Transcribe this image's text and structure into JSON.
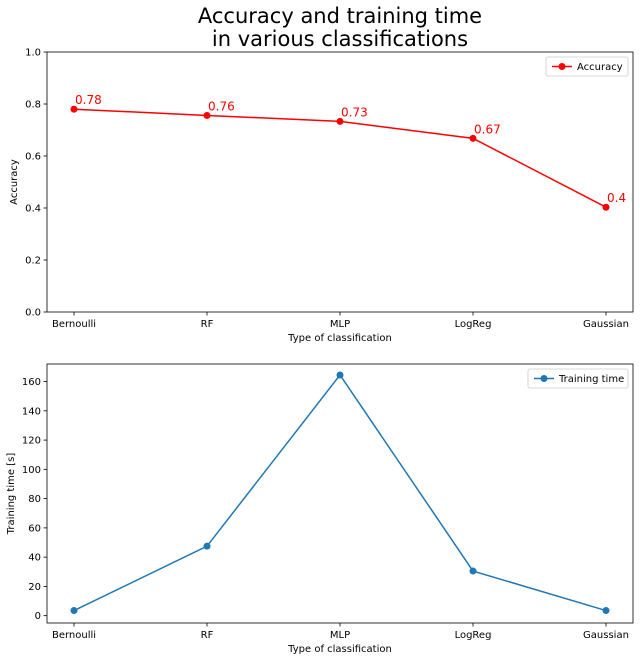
{
  "chart_data": [
    {
      "type": "line",
      "title": "Accuracy and training time\nin various classifications",
      "xlabel": "Type of classification",
      "ylabel": "Accuracy",
      "categories": [
        "Bernoulli",
        "RF",
        "MLP",
        "LogReg",
        "Gaussian"
      ],
      "series": [
        {
          "name": "Accuracy",
          "values": [
            0.78,
            0.756,
            0.733,
            0.668,
            0.403
          ],
          "color": "#ff0000"
        }
      ],
      "data_labels": [
        "0.78",
        "0.76",
        "0.73",
        "0.67",
        "0.4"
      ],
      "ylim": [
        0,
        1.0
      ],
      "yticks": [
        0.0,
        0.2,
        0.4,
        0.6,
        0.8,
        1.0
      ],
      "ytick_labels": [
        "0.0",
        "0.2",
        "0.4",
        "0.6",
        "0.8",
        "1.0"
      ],
      "grid": false,
      "legend": "top-right"
    },
    {
      "type": "line",
      "title": "",
      "xlabel": "Type of classification",
      "ylabel": "Training time [s]",
      "categories": [
        "Bernoulli",
        "RF",
        "MLP",
        "LogReg",
        "Gaussian"
      ],
      "series": [
        {
          "name": "Training time",
          "values": [
            3.5,
            47.5,
            164.5,
            30.5,
            3.5
          ],
          "color": "#1f77b4"
        }
      ],
      "ylim": [
        -5,
        172
      ],
      "yticks": [
        0,
        20,
        40,
        60,
        80,
        100,
        120,
        140,
        160
      ],
      "ytick_labels": [
        "0",
        "20",
        "40",
        "60",
        "80",
        "100",
        "120",
        "140",
        "160"
      ],
      "grid": false,
      "legend": "top-right"
    }
  ]
}
